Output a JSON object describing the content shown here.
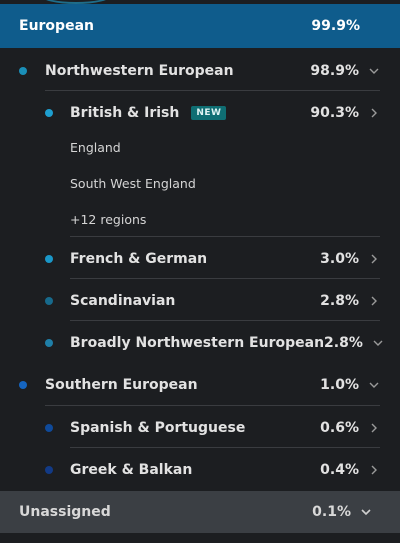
{
  "header": {
    "label": "European",
    "percent": "99.9%"
  },
  "regions": {
    "northwestern": {
      "label": "Northwestern European",
      "percent": "98.9%"
    },
    "british_irish": {
      "label": "British & Irish",
      "badge": "NEW",
      "percent": "90.3%"
    },
    "sub_regions": [
      "England",
      "South West England",
      "+12 regions"
    ],
    "french_german": {
      "label": "French & German",
      "percent": "3.0%"
    },
    "scandinavian": {
      "label": "Scandinavian",
      "percent": "2.8%"
    },
    "broadly_nw": {
      "label": "Broadly Northwestern European",
      "percent": "2.8%"
    },
    "southern": {
      "label": "Southern European",
      "percent": "1.0%"
    },
    "spanish_portuguese": {
      "label": "Spanish & Portuguese",
      "percent": "0.6%"
    },
    "greek_balkan": {
      "label": "Greek & Balkan",
      "percent": "0.4%"
    }
  },
  "footer": {
    "label": "Unassigned",
    "percent": "0.1%"
  },
  "colors": {
    "header_bg": "#0f5c8c",
    "nw_dot": "#1a8fb8",
    "british_dot": "#1e9fd0",
    "french_dot": "#1a97c8",
    "scand_dot": "#176a8c",
    "broadly_dot": "#1f7fa8",
    "southern_dot": "#1565c0",
    "spanish_dot": "#0f4a9a",
    "greek_dot": "#123a86",
    "badge_bg": "#0f6e73"
  }
}
